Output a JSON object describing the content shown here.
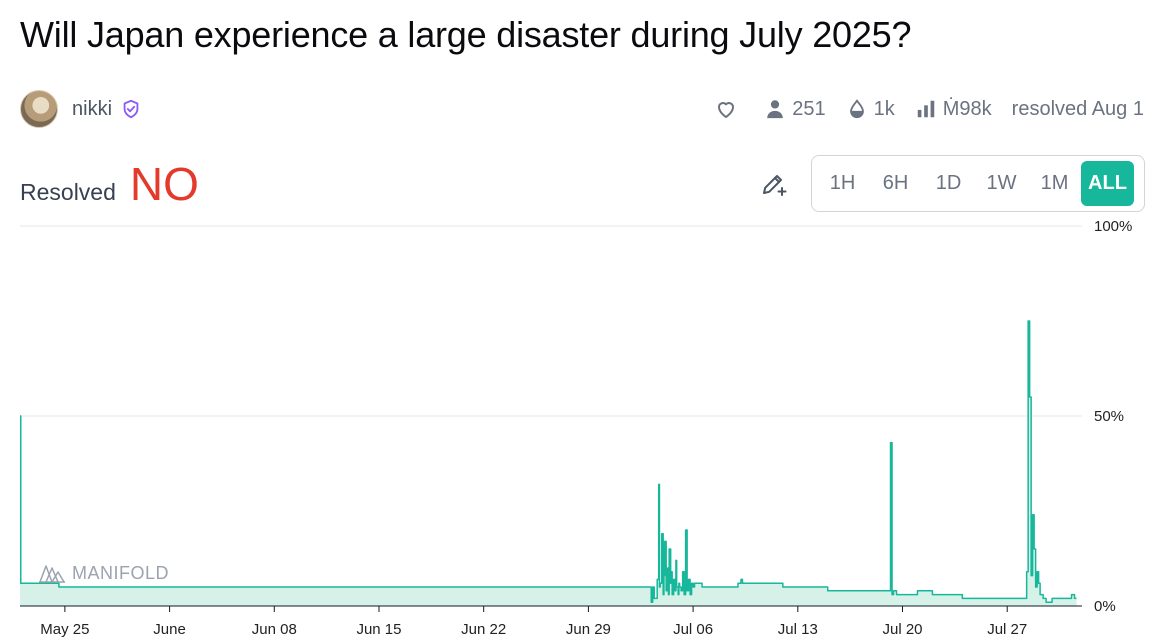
{
  "market": {
    "title": "Will Japan experience a large disaster during July 2025?",
    "author": "nikki",
    "stats": {
      "traders": "251",
      "liquidity": "1k",
      "volume": "Ṁ98k",
      "resolved": "resolved Aug 1"
    },
    "resolution_label": "Resolved",
    "resolution_value": "NO"
  },
  "time_range": {
    "options": [
      "1H",
      "6H",
      "1D",
      "1W",
      "1M",
      "ALL"
    ],
    "selected": "ALL"
  },
  "watermark": "MANIFOLD",
  "colors": {
    "line": "#17b79b",
    "fill": "#d6f2e8",
    "no": "#e33a2b",
    "verified": "#8b5cf6"
  },
  "icons": {
    "like": "heart-icon",
    "traders": "person-icon",
    "liquidity": "droplet-icon",
    "volume": "bar-chart-icon",
    "edit": "pencil-plus-icon",
    "verified": "shield-check-icon"
  },
  "chart_data": {
    "type": "area",
    "x_tick_labels": [
      "May 25",
      "June",
      "Jun 08",
      "Jun 15",
      "Jun 22",
      "Jun 29",
      "Jul 06",
      "Jul 13",
      "Jul 20",
      "Jul 27"
    ],
    "x_ticks": [
      2.0,
      9.0,
      16.0,
      23.0,
      30.0,
      37.0,
      44.0,
      51.0,
      58.0,
      65.0
    ],
    "xlim": [
      -1.0,
      70.0
    ],
    "y_tick_labels": [
      "100%",
      "50%",
      "0%"
    ],
    "y_ticks": [
      100,
      50,
      0
    ],
    "ylim": [
      0,
      100
    ],
    "grid": true,
    "x": [
      -1.0,
      -0.95,
      -0.9,
      1.5,
      1.6,
      41.0,
      41.2,
      41.3,
      41.4,
      41.6,
      41.7,
      41.75,
      41.8,
      41.9,
      42.0,
      42.05,
      42.1,
      42.2,
      42.3,
      42.35,
      42.4,
      42.5,
      42.55,
      42.6,
      42.7,
      42.8,
      42.85,
      42.9,
      43.0,
      43.05,
      43.1,
      43.2,
      43.3,
      43.4,
      43.5,
      43.6,
      43.7,
      43.8,
      43.9,
      44.0,
      44.1,
      44.2,
      44.3,
      44.4,
      44.5,
      44.6,
      45.0,
      46.0,
      47.0,
      47.2,
      47.3,
      48.0,
      49.0,
      50.0,
      51.0,
      52.0,
      53.0,
      54.0,
      55.0,
      56.0,
      57.0,
      57.2,
      57.3,
      57.4,
      57.6,
      58.0,
      59.0,
      60.0,
      61.0,
      62.0,
      63.0,
      64.0,
      65.0,
      66.0,
      66.3,
      66.4,
      66.5,
      66.6,
      66.7,
      66.8,
      66.9,
      67.0,
      67.1,
      67.2,
      67.4,
      67.6,
      68.0,
      68.5,
      69.0,
      69.3,
      69.5
    ],
    "y": [
      50,
      6,
      6,
      6,
      5,
      5,
      1,
      5,
      2,
      7,
      32,
      5,
      6,
      19,
      3,
      8,
      17,
      4,
      10,
      3,
      15,
      6,
      9,
      3,
      7,
      4,
      12,
      5,
      3,
      6,
      5,
      4,
      9,
      3,
      20,
      4,
      7,
      3,
      6,
      5,
      6,
      6,
      6,
      6,
      6,
      5,
      5,
      5,
      6,
      7,
      6,
      6,
      6,
      5,
      5,
      5,
      4,
      4,
      4,
      4,
      4,
      43,
      3,
      4,
      3,
      3,
      4,
      3,
      3,
      2,
      2,
      2,
      2,
      2,
      9,
      75,
      55,
      8,
      24,
      15,
      5,
      9,
      6,
      3,
      2,
      1,
      2,
      2,
      2,
      3,
      2
    ]
  }
}
